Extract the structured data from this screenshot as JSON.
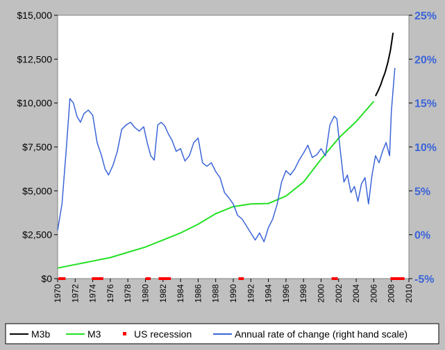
{
  "colors": {
    "background": "#c0c0c0",
    "plot_area": "#ffffff",
    "m3b": "#000000",
    "m3": "#22e022",
    "recession": "#ff0000",
    "rate": "#3a64d8",
    "right_axis_labels": "#3a64d8"
  },
  "chart_data": {
    "type": "line",
    "title": "",
    "xlabel": "",
    "ylabel": "",
    "grid": false,
    "legend_position": "bottom",
    "xlim": [
      1970,
      2010
    ],
    "ylim_left": [
      0,
      15000
    ],
    "ylim_right": [
      -5,
      25
    ],
    "x_tick_labels": [
      "1970",
      "1972",
      "1974",
      "1976",
      "1978",
      "1980",
      "1982",
      "1984",
      "1986",
      "1988",
      "1990",
      "1992",
      "1994",
      "1996",
      "1998",
      "2000",
      "2002",
      "2004",
      "2006",
      "2008",
      "2010"
    ],
    "y_left_tick_labels": [
      "$0",
      "$2,500",
      "$5,000",
      "$7,500",
      "$10,000",
      "$12,500",
      "$15,000"
    ],
    "y_right_tick_labels": [
      "-5%",
      "0%",
      "5%",
      "10%",
      "15%",
      "20%",
      "25%"
    ],
    "legend": [
      "M3b",
      "M3",
      "US recession",
      "Annual rate of change (right hand scale)"
    ],
    "series": [
      {
        "name": "M3b",
        "axis": "left",
        "x": [
          2006.2,
          2006.5,
          2006.8,
          2007.0,
          2007.3,
          2007.6,
          2007.9,
          2008.2
        ],
        "values": [
          10400,
          10700,
          11050,
          11350,
          11750,
          12300,
          13000,
          14000
        ]
      },
      {
        "name": "M3",
        "axis": "left",
        "x": [
          1970,
          1972,
          1974,
          1976,
          1978,
          1980,
          1982,
          1984,
          1986,
          1988,
          1990,
          1992,
          1994,
          1996,
          1998,
          2000,
          2002,
          2004,
          2006
        ],
        "values": [
          600,
          800,
          1000,
          1200,
          1500,
          1800,
          2200,
          2600,
          3100,
          3700,
          4100,
          4250,
          4280,
          4700,
          5500,
          6800,
          8000,
          8950,
          10100
        ]
      },
      {
        "name": "US recession",
        "axis": "left",
        "periods": [
          [
            1970.0,
            1970.9
          ],
          [
            1973.9,
            1975.2
          ],
          [
            1980.0,
            1980.6
          ],
          [
            1981.5,
            1982.9
          ],
          [
            1990.6,
            1991.2
          ],
          [
            2001.2,
            2001.9
          ],
          [
            2007.9,
            2009.5
          ]
        ]
      },
      {
        "name": "Annual rate of change (right hand scale)",
        "axis": "right",
        "x": [
          1970.0,
          1970.5,
          1971.0,
          1971.4,
          1971.8,
          1972.2,
          1972.6,
          1973.0,
          1973.5,
          1974.0,
          1974.5,
          1975.0,
          1975.4,
          1975.8,
          1976.3,
          1976.8,
          1977.3,
          1977.8,
          1978.3,
          1978.8,
          1979.3,
          1979.8,
          1980.2,
          1980.6,
          1981.0,
          1981.4,
          1981.8,
          1982.2,
          1982.6,
          1983.0,
          1983.5,
          1984.0,
          1984.5,
          1985.0,
          1985.5,
          1986.0,
          1986.5,
          1987.0,
          1987.5,
          1988.0,
          1988.5,
          1989.0,
          1989.5,
          1990.0,
          1990.5,
          1991.0,
          1991.5,
          1992.0,
          1992.5,
          1993.0,
          1993.5,
          1994.0,
          1994.5,
          1995.0,
          1995.5,
          1996.0,
          1996.5,
          1997.0,
          1997.5,
          1998.0,
          1998.5,
          1999.0,
          1999.5,
          2000.0,
          2000.5,
          2001.0,
          2001.5,
          2001.8,
          2002.2,
          2002.6,
          2003.0,
          2003.4,
          2003.8,
          2004.2,
          2004.6,
          2005.0,
          2005.4,
          2005.8,
          2006.2,
          2006.6,
          2007.0,
          2007.4,
          2007.8,
          2008.0,
          2008.2,
          2008.4
        ],
        "values": [
          0.5,
          3.5,
          10.0,
          15.5,
          15.0,
          13.5,
          12.8,
          13.8,
          14.2,
          13.6,
          10.5,
          9.0,
          7.5,
          6.8,
          7.9,
          9.5,
          12.0,
          12.5,
          12.8,
          12.2,
          11.8,
          12.3,
          10.5,
          9.0,
          8.5,
          12.5,
          12.8,
          12.4,
          11.5,
          10.8,
          9.5,
          9.8,
          8.4,
          9.0,
          10.5,
          11.0,
          8.2,
          7.8,
          8.2,
          7.2,
          6.5,
          4.8,
          4.2,
          3.5,
          2.2,
          1.8,
          1.0,
          0.2,
          -0.6,
          0.2,
          -0.8,
          0.8,
          1.8,
          3.5,
          6.0,
          7.3,
          6.8,
          7.5,
          8.5,
          9.3,
          10.2,
          8.8,
          9.1,
          9.8,
          9.0,
          12.5,
          13.5,
          13.2,
          9.5,
          6.0,
          6.8,
          4.8,
          5.5,
          3.8,
          5.8,
          6.5,
          3.5,
          6.8,
          9.0,
          8.2,
          9.5,
          10.5,
          9.0,
          14.0,
          16.5,
          19.0
        ]
      }
    ]
  }
}
